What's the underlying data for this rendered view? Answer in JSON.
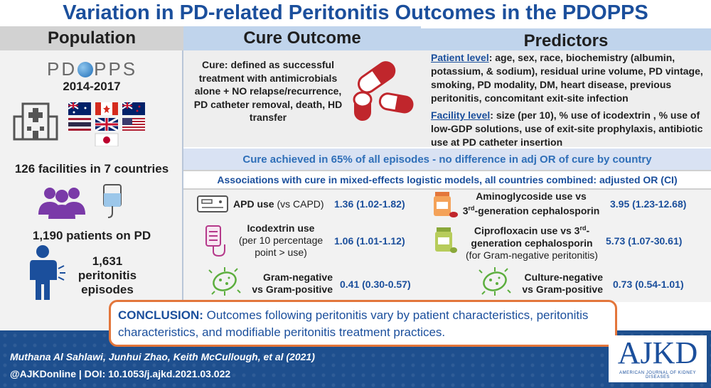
{
  "title": "Variation in PD-related Peritonitis Outcomes in the PDOPPS",
  "headers": {
    "population": "Population",
    "cure_outcome": "Cure Outcome",
    "predictors": "Predictors"
  },
  "population": {
    "logo_left": "PD",
    "logo_right": "PPS",
    "years": "2014-2017",
    "facilities": "126 facilities in 7 countries",
    "patients": "1,190 patients on PD",
    "episodes_line1": "1,631",
    "episodes_line2": "peritonitis",
    "episodes_line3": "episodes"
  },
  "cure": {
    "definition": "Cure: defined as successful treatment with antimicrobials alone + NO relapse/recurrence, PD catheter removal, death, HD transfer"
  },
  "predictors": {
    "patient_label": "Patient level",
    "patient_text": ": age, sex, race, biochemistry (albumin, potassium, & sodium), residual urine volume, PD vintage, smoking, PD modality, DM, heart disease, previous peritonitis, concomitant exit-site infection",
    "facility_label": "Facility level",
    "facility_text": ": size (per 10), % use of icodextrin , % use of low-GDP solutions, use of exit-site prophylaxis, antibiotic use at PD catheter insertion"
  },
  "cure_summary": "Cure achieved in 65% of all episodes - no difference in adj OR of cure by country",
  "associations_header": "Associations with cure in mixed-effects logistic models, all countries combined: adjusted OR (CI)",
  "associations": {
    "apd_label": "APD use",
    "apd_vs": " (vs CAPD)",
    "apd_or": "1.36 (1.02-1.82)",
    "ico_line1": "Icodextrin use",
    "ico_line2": "(per 10 percentage",
    "ico_line3": "point > use)",
    "ico_or": "1.06 (1.01-1.12)",
    "gn_line1": "Gram-negative",
    "gn_line2": "vs Gram-positive",
    "gn_or": "0.41 (0.30-0.57)",
    "amino_line1": "Aminoglycoside use vs",
    "amino_line2_pre": "3",
    "amino_line2_sup": "rd",
    "amino_line2_post": "-generation cephalosporin",
    "amino_or": "3.95 (1.23-12.68)",
    "cipro_line1_pre": "Ciprofloxacin use vs 3",
    "cipro_line1_sup": "rd",
    "cipro_line1_post": "-",
    "cipro_line2": "generation cephalosporin",
    "cipro_line3": "(for Gram-negative peritonitis)",
    "cipro_or": "5.73 (1.07-30.61)",
    "cn_line1": "Culture-negative",
    "cn_line2": "vs Gram-positive",
    "cn_or": "0.73 (0.54-1.01)"
  },
  "conclusion": {
    "heading": "CONCLUSION:",
    "text": " Outcomes following peritonitis vary by patient characteristics, peritonitis characteristics, and modifiable peritonitis treatment practices."
  },
  "footer": {
    "authors": "Muthana Al Sahlawi, Junhui Zhao, Keith McCullough, et al  (2021)",
    "doi": "@AJKDonline | DOI: 10.1053/j.ajkd.2021.03.022"
  },
  "journal": {
    "abbr": "AJKD",
    "full": "AMERICAN JOURNAL OF KIDNEY DISEASES"
  },
  "colors": {
    "title_blue": "#1b4f9c",
    "accent_orange": "#e3763b",
    "pill_red": "#c0262c",
    "purple": "#7a3aa8",
    "green": "#5cae3e"
  }
}
